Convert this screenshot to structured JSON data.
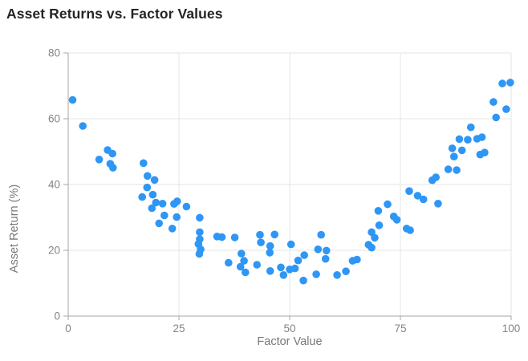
{
  "page": {
    "background_color": "#ffffff"
  },
  "header": {
    "title": "Asset Returns vs. Factor Values"
  },
  "chart_data": {
    "type": "scatter",
    "title": "Asset Returns vs. Factor Values",
    "xlabel": "Factor Value",
    "ylabel": "Asset Return (%)",
    "xlim": [
      0,
      100
    ],
    "ylim": [
      0,
      80
    ],
    "xticks": [
      0,
      25,
      50,
      75,
      100
    ],
    "yticks": [
      0,
      20,
      40,
      60,
      80
    ],
    "grid": true,
    "legend": false,
    "marker_color": "#2e96f5",
    "axis_line_color": "#a9a7a5",
    "gridline_color": "#e4e4e4",
    "tick_label_color": "#858381",
    "axis_title_color": "#7a7876",
    "title_color": "#252423",
    "points": [
      [
        1.0,
        65.7
      ],
      [
        3.3,
        57.8
      ],
      [
        7.0,
        47.6
      ],
      [
        8.9,
        50.5
      ],
      [
        9.5,
        46.3
      ],
      [
        10.0,
        49.4
      ],
      [
        10.1,
        45.1
      ],
      [
        16.7,
        36.2
      ],
      [
        17.0,
        46.5
      ],
      [
        17.8,
        39.1
      ],
      [
        17.9,
        42.6
      ],
      [
        18.9,
        32.8
      ],
      [
        19.1,
        36.9
      ],
      [
        19.5,
        41.4
      ],
      [
        19.8,
        34.5
      ],
      [
        20.5,
        28.2
      ],
      [
        21.3,
        34.2
      ],
      [
        21.7,
        30.6
      ],
      [
        23.5,
        26.6
      ],
      [
        23.9,
        34.1
      ],
      [
        24.5,
        30.1
      ],
      [
        24.6,
        34.9
      ],
      [
        26.7,
        33.3
      ],
      [
        29.4,
        21.9
      ],
      [
        29.6,
        18.9
      ],
      [
        29.7,
        29.9
      ],
      [
        29.7,
        25.5
      ],
      [
        29.7,
        23.4
      ],
      [
        29.9,
        20.3
      ],
      [
        33.6,
        24.2
      ],
      [
        34.7,
        24.0
      ],
      [
        36.2,
        16.2
      ],
      [
        37.6,
        23.9
      ],
      [
        38.9,
        15.0
      ],
      [
        39.1,
        19.0
      ],
      [
        39.7,
        16.8
      ],
      [
        40.0,
        13.3
      ],
      [
        42.6,
        15.6
      ],
      [
        43.3,
        24.7
      ],
      [
        43.5,
        22.4
      ],
      [
        45.5,
        19.3
      ],
      [
        45.6,
        21.3
      ],
      [
        45.6,
        13.7
      ],
      [
        46.6,
        24.8
      ],
      [
        48.0,
        14.8
      ],
      [
        48.6,
        12.5
      ],
      [
        50.0,
        14.2
      ],
      [
        50.3,
        21.8
      ],
      [
        51.2,
        14.5
      ],
      [
        51.9,
        16.9
      ],
      [
        53.1,
        10.8
      ],
      [
        53.3,
        18.5
      ],
      [
        56.0,
        12.7
      ],
      [
        56.4,
        20.3
      ],
      [
        57.1,
        24.7
      ],
      [
        58.1,
        17.4
      ],
      [
        58.3,
        19.9
      ],
      [
        60.7,
        12.5
      ],
      [
        62.7,
        13.6
      ],
      [
        64.2,
        16.8
      ],
      [
        65.2,
        17.2
      ],
      [
        67.8,
        21.7
      ],
      [
        68.5,
        20.8
      ],
      [
        68.5,
        25.5
      ],
      [
        69.2,
        23.8
      ],
      [
        70.0,
        32.0
      ],
      [
        70.2,
        27.6
      ],
      [
        72.1,
        34.0
      ],
      [
        73.5,
        30.3
      ],
      [
        74.2,
        29.3
      ],
      [
        76.4,
        26.6
      ],
      [
        77.0,
        38.0
      ],
      [
        77.2,
        26.1
      ],
      [
        78.9,
        36.6
      ],
      [
        80.2,
        35.5
      ],
      [
        82.2,
        41.3
      ],
      [
        83.0,
        42.2
      ],
      [
        83.5,
        34.2
      ],
      [
        85.8,
        44.6
      ],
      [
        86.7,
        51.0
      ],
      [
        87.1,
        48.5
      ],
      [
        87.7,
        44.4
      ],
      [
        88.3,
        53.8
      ],
      [
        88.9,
        50.4
      ],
      [
        90.2,
        53.6
      ],
      [
        90.9,
        57.4
      ],
      [
        92.3,
        53.9
      ],
      [
        93.0,
        49.1
      ],
      [
        93.4,
        54.4
      ],
      [
        94.0,
        49.7
      ],
      [
        96.0,
        65.1
      ],
      [
        96.6,
        60.4
      ],
      [
        98.0,
        70.7
      ],
      [
        98.9,
        62.9
      ],
      [
        99.8,
        71.0
      ]
    ]
  }
}
